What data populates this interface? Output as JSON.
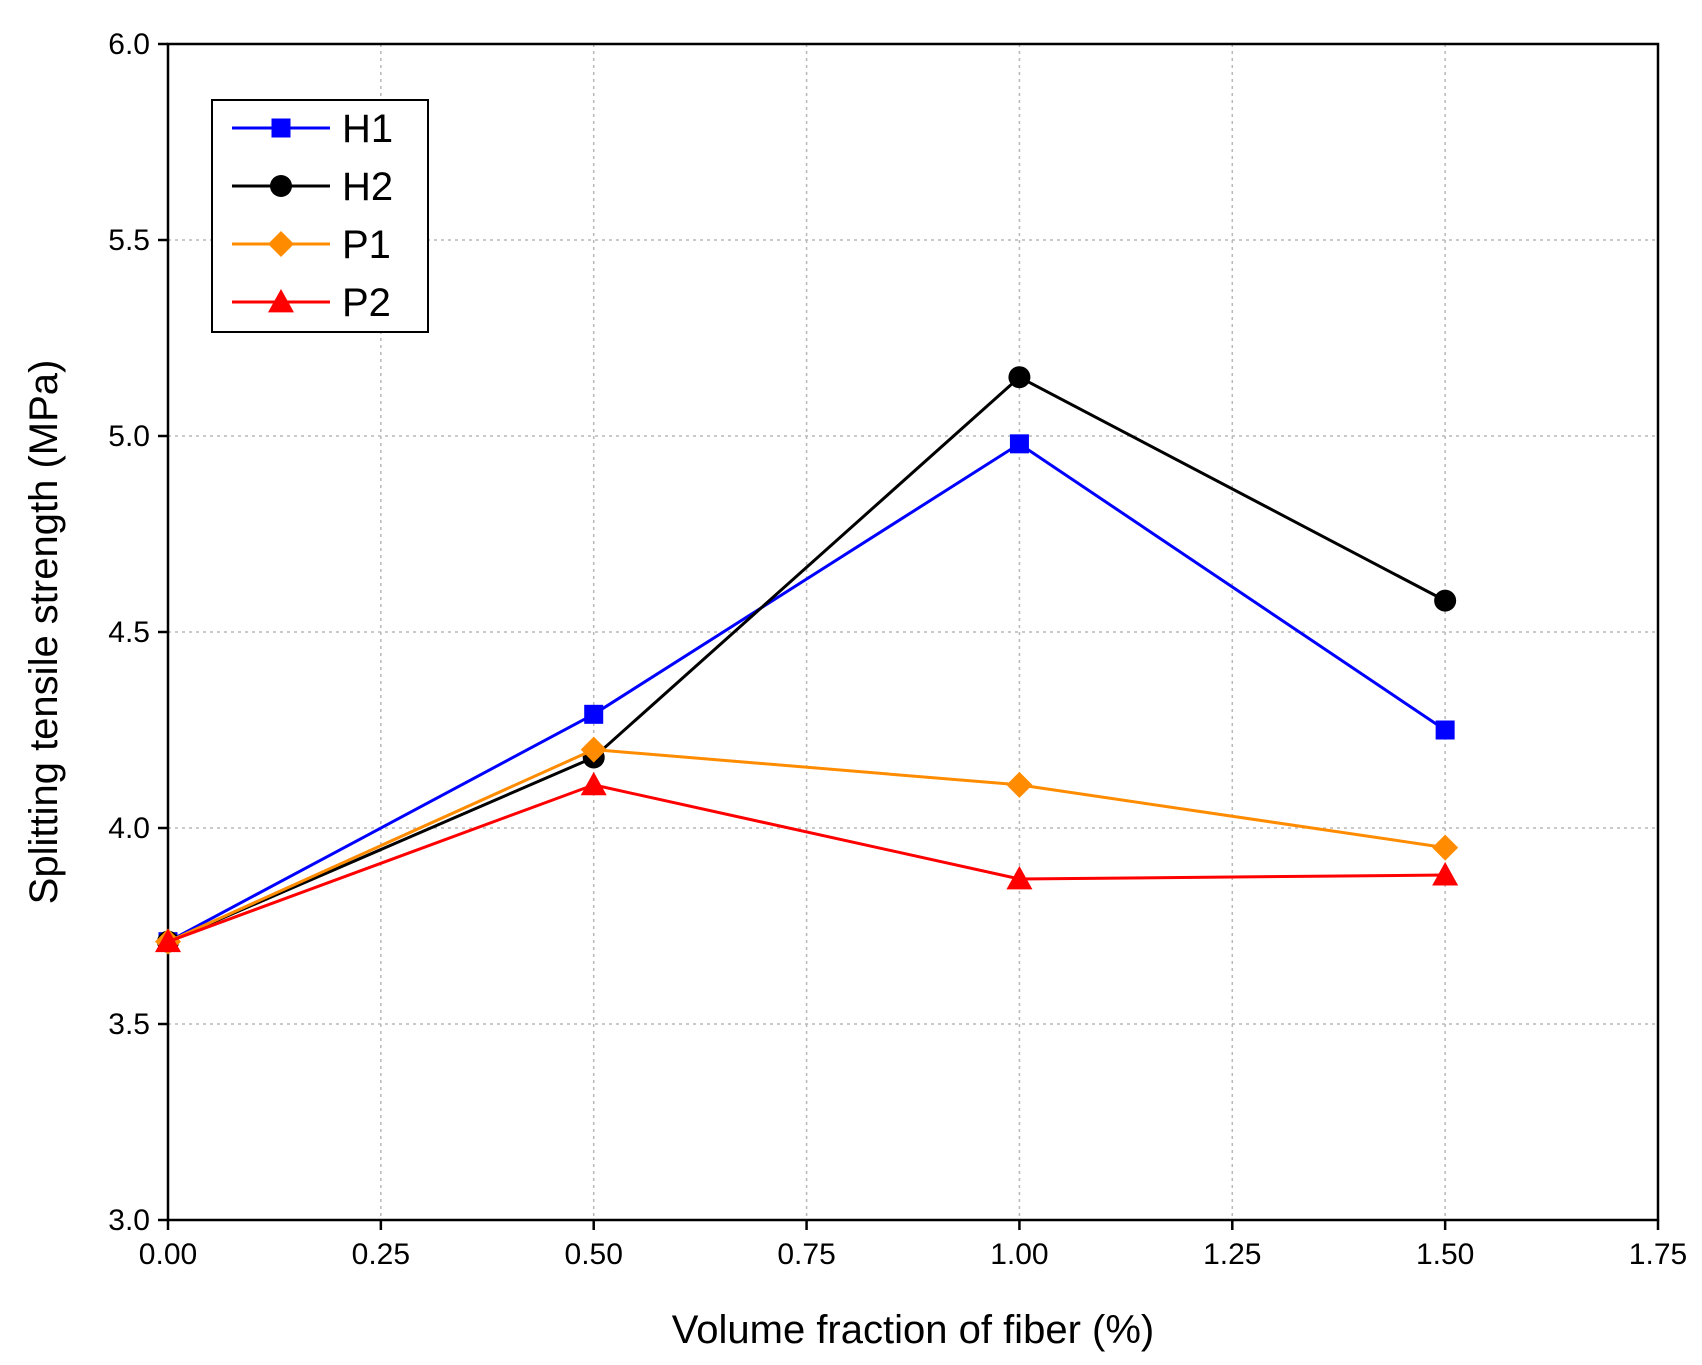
{
  "chart_data": {
    "type": "line",
    "title": "",
    "xlabel": "Volume fraction of fiber (%)",
    "ylabel": "Splitting tensile strength (MPa)",
    "xlim": [
      0,
      1.75
    ],
    "ylim": [
      3.0,
      6.0
    ],
    "x_ticks": [
      "0.00",
      "0.25",
      "0.50",
      "0.75",
      "1.00",
      "1.25",
      "1.50",
      "1.75"
    ],
    "x_tick_values": [
      0,
      0.25,
      0.5,
      0.75,
      1.0,
      1.25,
      1.5,
      1.75
    ],
    "y_ticks": [
      "3.0",
      "3.5",
      "4.0",
      "4.5",
      "5.0",
      "5.5",
      "6.0"
    ],
    "y_tick_values": [
      3.0,
      3.5,
      4.0,
      4.5,
      5.0,
      5.5,
      6.0
    ],
    "grid": true,
    "legend_position": "top-left",
    "x": [
      0,
      0.5,
      1.0,
      1.5
    ],
    "series": [
      {
        "name": "H1",
        "values": [
          3.71,
          4.29,
          4.98,
          4.25
        ],
        "color": "#0000ff",
        "marker": "square"
      },
      {
        "name": "H2",
        "values": [
          3.71,
          4.18,
          5.15,
          4.58
        ],
        "color": "#000000",
        "marker": "circle"
      },
      {
        "name": "P1",
        "values": [
          3.71,
          4.2,
          4.11,
          3.95
        ],
        "color": "#ff8c00",
        "marker": "diamond"
      },
      {
        "name": "P2",
        "values": [
          3.71,
          4.11,
          3.87,
          3.88
        ],
        "color": "#ff0000",
        "marker": "triangle"
      }
    ]
  }
}
